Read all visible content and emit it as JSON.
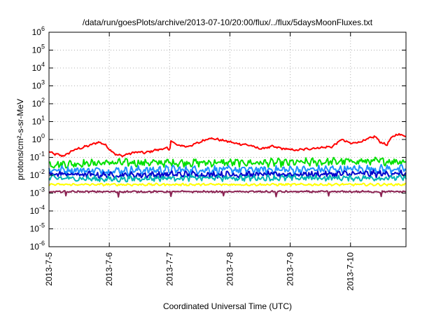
{
  "chart_data": {
    "type": "line",
    "title": "/data/run/goesPlots/archive/2013-07-10/20:00/flux/../flux/5daysMoonFluxes.txt",
    "xlabel": "Coordinated Universal Time (UTC)",
    "ylabel": "protons/cm²-s-sr-MeV",
    "yscale": "log",
    "ylim": [
      1e-06,
      1000000.0
    ],
    "xlim": [
      0,
      5.92
    ],
    "grid": true,
    "legend": "none",
    "x_ticks": [
      {
        "label": "2013-7-5",
        "value": 0
      },
      {
        "label": "2013-7-6",
        "value": 1
      },
      {
        "label": "2013-7-7",
        "value": 2
      },
      {
        "label": "2013-7-8",
        "value": 3
      },
      {
        "label": "2013-7-9",
        "value": 4
      },
      {
        "label": "2013-7-10",
        "value": 5
      }
    ],
    "y_ticks": [
      {
        "base": "10",
        "exp": "6",
        "value": 1000000.0
      },
      {
        "base": "10",
        "exp": "5",
        "value": 100000.0
      },
      {
        "base": "10",
        "exp": "4",
        "value": 10000.0
      },
      {
        "base": "10",
        "exp": "3",
        "value": 1000.0
      },
      {
        "base": "10",
        "exp": "2",
        "value": 100.0
      },
      {
        "base": "10",
        "exp": "1",
        "value": 10.0
      },
      {
        "base": "10",
        "exp": "0",
        "value": 1.0
      },
      {
        "base": "10",
        "exp": "-1",
        "value": 0.1
      },
      {
        "base": "10",
        "exp": "-2",
        "value": 0.01
      },
      {
        "base": "10",
        "exp": "-3",
        "value": 0.001
      },
      {
        "base": "10",
        "exp": "-4",
        "value": 0.0001
      },
      {
        "base": "10",
        "exp": "-5",
        "value": 1e-05
      },
      {
        "base": "10",
        "exp": "-6",
        "value": 1e-06
      }
    ],
    "series": [
      {
        "color": "#ff0000",
        "noise": 0.05,
        "x": [
          0,
          0.1,
          0.25,
          0.4,
          0.55,
          0.7,
          0.8,
          0.9,
          1.0,
          1.1,
          1.2,
          1.3,
          1.45,
          1.6,
          1.75,
          1.9,
          1.95,
          2.0,
          2.02,
          2.1,
          2.3,
          2.5,
          2.65,
          2.8,
          2.95,
          3.1,
          3.3,
          3.5,
          3.7,
          3.9,
          4.1,
          4.3,
          4.5,
          4.7,
          4.85,
          5.0,
          5.2,
          5.4,
          5.5,
          5.6,
          5.7,
          5.8,
          5.92
        ],
        "y": [
          0.2,
          0.15,
          0.12,
          0.25,
          0.35,
          0.5,
          0.7,
          0.6,
          0.3,
          0.15,
          0.12,
          0.15,
          0.2,
          0.18,
          0.25,
          0.3,
          0.35,
          0.2,
          1.0,
          0.5,
          0.4,
          0.7,
          1.2,
          1.0,
          0.8,
          0.6,
          0.5,
          0.3,
          0.4,
          0.3,
          0.25,
          0.3,
          0.35,
          0.4,
          1.0,
          0.6,
          0.8,
          1.5,
          0.7,
          0.5,
          1.5,
          2.0,
          1.5
        ]
      },
      {
        "color": "#00e000",
        "noise": 0.17,
        "x": [
          0,
          1,
          2,
          3,
          4,
          5,
          5.92
        ],
        "y": [
          0.04,
          0.05,
          0.05,
          0.05,
          0.05,
          0.06,
          0.06
        ]
      },
      {
        "color": "#1e90ff",
        "noise": 0.18,
        "x": [
          0,
          1,
          2,
          3,
          4,
          5,
          5.92
        ],
        "y": [
          0.02,
          0.018,
          0.02,
          0.02,
          0.02,
          0.022,
          0.022
        ]
      },
      {
        "color": "#0000cc",
        "noise": 0.14,
        "x": [
          0,
          1,
          2,
          3,
          4,
          5,
          5.92
        ],
        "y": [
          0.012,
          0.01,
          0.011,
          0.011,
          0.011,
          0.012,
          0.012
        ]
      },
      {
        "color": "#00b4b4",
        "noise": 0.13,
        "x": [
          0,
          1,
          2,
          3,
          4,
          5,
          5.92
        ],
        "y": [
          0.007,
          0.006,
          0.007,
          0.007,
          0.007,
          0.007,
          0.007
        ]
      },
      {
        "color": "#ffff00",
        "noise": 0.05,
        "x": [
          0,
          1,
          2,
          3,
          4,
          5,
          5.92
        ],
        "y": [
          0.003,
          0.003,
          0.003,
          0.003,
          0.003,
          0.003,
          0.003
        ]
      },
      {
        "color": "#8b2252",
        "noise": 0.04,
        "x": [
          0,
          1,
          2,
          3,
          4,
          5,
          5.92
        ],
        "y": [
          0.0012,
          0.0012,
          0.0012,
          0.0012,
          0.0012,
          0.0012,
          0.0012
        ]
      }
    ]
  }
}
